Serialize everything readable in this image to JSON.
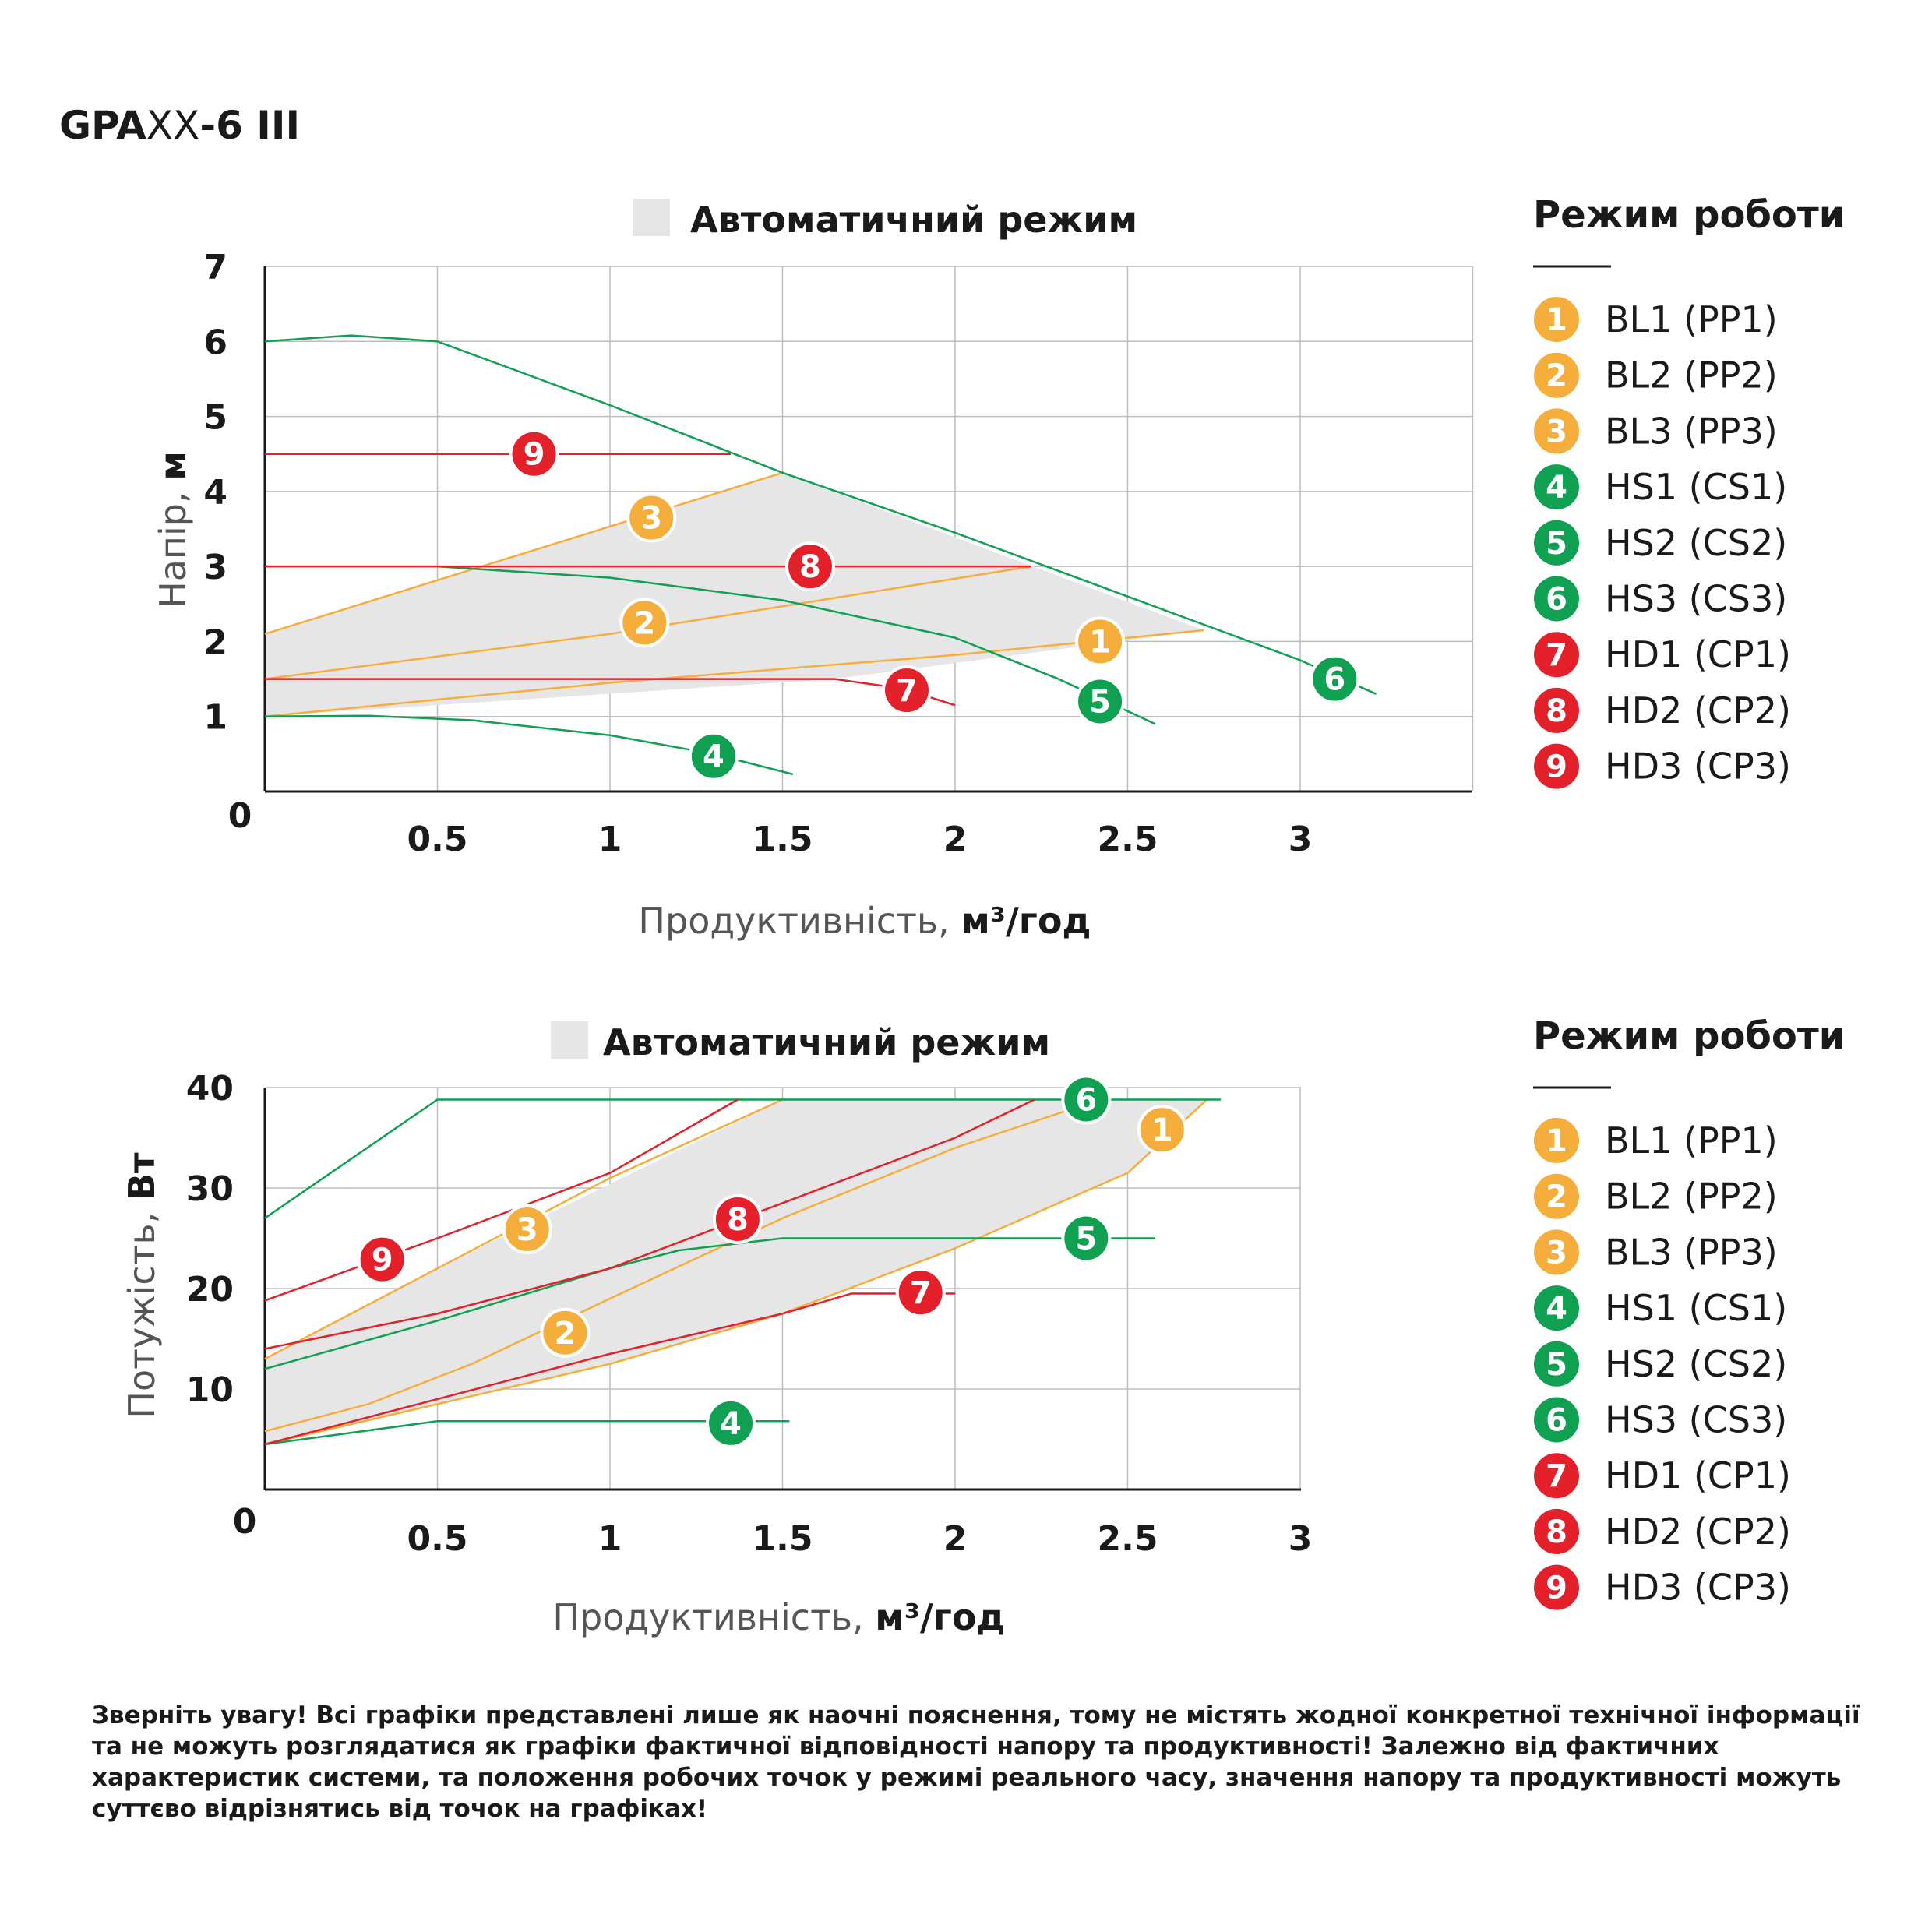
{
  "title": {
    "prefix": "GPA",
    "mid": "XX",
    "suffix": "-6 III"
  },
  "colors": {
    "orange": "#F5AE3C",
    "green": "#0FA052",
    "red": "#E4212A",
    "band": "#E6E6E6",
    "grid": "#BDBDBD"
  },
  "legend": {
    "title": "Режим роботи",
    "items": [
      {
        "num": "1",
        "label": "BL1 (PP1)",
        "color": "orange"
      },
      {
        "num": "2",
        "label": "BL2 (PP2)",
        "color": "orange"
      },
      {
        "num": "3",
        "label": "BL3 (PP3)",
        "color": "orange"
      },
      {
        "num": "4",
        "label": "HS1 (CS1)",
        "color": "green"
      },
      {
        "num": "5",
        "label": "HS2 (CS2)",
        "color": "green"
      },
      {
        "num": "6",
        "label": "HS3 (CS3)",
        "color": "green"
      },
      {
        "num": "7",
        "label": "HD1 (CP1)",
        "color": "red"
      },
      {
        "num": "8",
        "label": "HD2 (CP2)",
        "color": "red"
      },
      {
        "num": "9",
        "label": "HD3 (CP3)",
        "color": "red"
      }
    ]
  },
  "chart_data": [
    {
      "type": "line",
      "band_label": "Автоматичний режим",
      "xlabel": "Продуктивність,",
      "xunit": "м³/год",
      "ylabel": "Напір,",
      "yunit": "м",
      "xlim": [
        0,
        3.5
      ],
      "ylim": [
        0,
        7
      ],
      "x_ticks": [
        "0.5",
        "1",
        "1.5",
        "2",
        "2.5",
        "3"
      ],
      "y_ticks": [
        "1",
        "2",
        "3",
        "4",
        "5",
        "6",
        "7"
      ],
      "origin_label": "0",
      "grid": true,
      "band": [
        [
          0,
          2.1
        ],
        [
          1.5,
          4.25
        ],
        [
          2.72,
          2.15
        ],
        [
          2.72,
          2.15
        ],
        [
          1.65,
          1.5
        ],
        [
          0,
          1.0
        ]
      ],
      "series": [
        {
          "num": "1",
          "color": "orange",
          "points": [
            [
              0,
              1.0
            ],
            [
              1.0,
              1.45
            ],
            [
              2.0,
              1.82
            ],
            [
              2.72,
              2.15
            ]
          ],
          "marker": [
            2.42,
            2.0
          ]
        },
        {
          "num": "2",
          "color": "orange",
          "points": [
            [
              0,
              1.5
            ],
            [
              1.0,
              2.1
            ],
            [
              2.22,
              3.0
            ]
          ],
          "marker": [
            1.1,
            2.25
          ]
        },
        {
          "num": "3",
          "color": "orange",
          "points": [
            [
              0,
              2.1
            ],
            [
              1.5,
              4.25
            ]
          ],
          "marker": [
            1.12,
            3.65
          ]
        },
        {
          "num": "4",
          "color": "green",
          "points": [
            [
              0,
              1.0
            ],
            [
              0.3,
              1.01
            ],
            [
              0.6,
              0.95
            ],
            [
              1.0,
              0.75
            ],
            [
              1.3,
              0.5
            ],
            [
              1.53,
              0.23
            ]
          ],
          "marker": [
            1.3,
            0.47
          ]
        },
        {
          "num": "5",
          "color": "green",
          "points": [
            [
              0,
              3.0
            ],
            [
              0.5,
              3.0
            ],
            [
              1.0,
              2.85
            ],
            [
              1.5,
              2.55
            ],
            [
              2.0,
              2.05
            ],
            [
              2.3,
              1.5
            ],
            [
              2.58,
              0.9
            ]
          ],
          "marker": [
            2.42,
            1.2
          ]
        },
        {
          "num": "6",
          "color": "green",
          "points": [
            [
              0,
              6.0
            ],
            [
              0.25,
              6.08
            ],
            [
              0.5,
              6.0
            ],
            [
              1.0,
              5.15
            ],
            [
              1.5,
              4.25
            ],
            [
              2.0,
              3.45
            ],
            [
              2.5,
              2.6
            ],
            [
              3.0,
              1.75
            ],
            [
              3.22,
              1.3
            ]
          ],
          "marker": [
            3.1,
            1.5
          ]
        },
        {
          "num": "7",
          "color": "red",
          "points": [
            [
              0,
              1.5
            ],
            [
              1.65,
              1.5
            ],
            [
              1.85,
              1.37
            ],
            [
              2.0,
              1.15
            ]
          ],
          "marker": [
            1.86,
            1.35
          ]
        },
        {
          "num": "8",
          "color": "red",
          "points": [
            [
              0,
              3.0
            ],
            [
              2.22,
              3.0
            ]
          ],
          "marker": [
            1.58,
            3.0
          ]
        },
        {
          "num": "9",
          "color": "red",
          "points": [
            [
              0,
              4.5
            ],
            [
              1.35,
              4.5
            ]
          ],
          "marker": [
            0.78,
            4.5
          ]
        }
      ]
    },
    {
      "type": "line",
      "band_label": "Автоматичний режим",
      "xlabel": "Продуктивність,",
      "xunit": "м³/год",
      "ylabel": "Потужість,",
      "yunit": "Вт",
      "xlim": [
        0,
        3
      ],
      "ylim": [
        0,
        40
      ],
      "x_ticks": [
        "0.5",
        "1",
        "1.5",
        "2",
        "2.5",
        "3"
      ],
      "y_ticks": [
        "10",
        "20",
        "30",
        "40"
      ],
      "origin_label": "0",
      "grid": true,
      "band": [
        [
          0,
          13.0
        ],
        [
          0.5,
          22.0
        ],
        [
          1.5,
          38.8
        ],
        [
          2.73,
          38.8
        ],
        [
          2.5,
          31.5
        ],
        [
          2.0,
          24.0
        ],
        [
          1.5,
          17.5
        ],
        [
          1.0,
          12.5
        ],
        [
          0.5,
          8.5
        ],
        [
          0,
          4.5
        ]
      ],
      "series": [
        {
          "num": "1",
          "color": "orange",
          "points": [
            [
              0,
              4.5
            ],
            [
              0.5,
              8.5
            ],
            [
              1.0,
              12.5
            ],
            [
              1.5,
              17.5
            ],
            [
              2.0,
              24.0
            ],
            [
              2.5,
              31.5
            ],
            [
              2.73,
              38.8
            ]
          ],
          "marker": [
            2.6,
            35.8
          ]
        },
        {
          "num": "2",
          "color": "orange",
          "points": [
            [
              0,
              5.8
            ],
            [
              0.3,
              8.5
            ],
            [
              0.6,
              12.5
            ],
            [
              1.0,
              19.0
            ],
            [
              1.5,
              27.0
            ],
            [
              2.0,
              34.0
            ],
            [
              2.42,
              38.8
            ]
          ],
          "marker": [
            0.87,
            15.6
          ]
        },
        {
          "num": "3",
          "color": "orange",
          "points": [
            [
              0,
              13.0
            ],
            [
              0.5,
              22.0
            ],
            [
              1.0,
              31.0
            ],
            [
              1.5,
              38.8
            ]
          ],
          "marker": [
            0.76,
            25.9
          ]
        },
        {
          "num": "4",
          "color": "green",
          "points": [
            [
              0,
              4.5
            ],
            [
              0.5,
              6.8
            ],
            [
              1.52,
              6.8
            ]
          ],
          "marker": [
            1.35,
            6.6
          ]
        },
        {
          "num": "5",
          "color": "green",
          "points": [
            [
              0,
              12.0
            ],
            [
              0.5,
              16.8
            ],
            [
              1.0,
              22.0
            ],
            [
              1.2,
              23.8
            ],
            [
              1.5,
              25.0
            ],
            [
              2.58,
              25.0
            ]
          ],
          "marker": [
            2.38,
            25.0
          ]
        },
        {
          "num": "6",
          "color": "green",
          "points": [
            [
              0,
              27.0
            ],
            [
              0.5,
              38.8
            ],
            [
              2.77,
              38.8
            ]
          ],
          "marker": [
            2.38,
            38.8
          ]
        },
        {
          "num": "7",
          "color": "red",
          "points": [
            [
              0,
              4.5
            ],
            [
              0.5,
              9.0
            ],
            [
              1.0,
              13.5
            ],
            [
              1.5,
              17.5
            ],
            [
              1.7,
              19.5
            ],
            [
              2.0,
              19.5
            ]
          ],
          "marker": [
            1.9,
            19.6
          ]
        },
        {
          "num": "8",
          "color": "red",
          "points": [
            [
              0,
              14.0
            ],
            [
              0.5,
              17.5
            ],
            [
              1.0,
              22.0
            ],
            [
              1.5,
              28.5
            ],
            [
              2.0,
              35.0
            ],
            [
              2.23,
              38.8
            ]
          ],
          "marker": [
            1.37,
            26.9
          ]
        },
        {
          "num": "9",
          "color": "red",
          "points": [
            [
              0,
              18.8
            ],
            [
              0.5,
              25.0
            ],
            [
              1.0,
              31.5
            ],
            [
              1.37,
              38.8
            ]
          ],
          "marker": [
            0.34,
            22.9
          ]
        }
      ]
    }
  ],
  "disclaimer": "Зверніть увагу! Всі графіки представлені лише як наочні пояснення, тому не містять жодної конкретної технічної інформації та не можуть розглядатися як графіки фактичної відповідності напору та продуктивності! Залежно від фактичних характеристик системи, та положення робочих точок у режимі реального часу, значення напору та продуктивності можуть суттєво відрізнятись від точок на графіках!"
}
